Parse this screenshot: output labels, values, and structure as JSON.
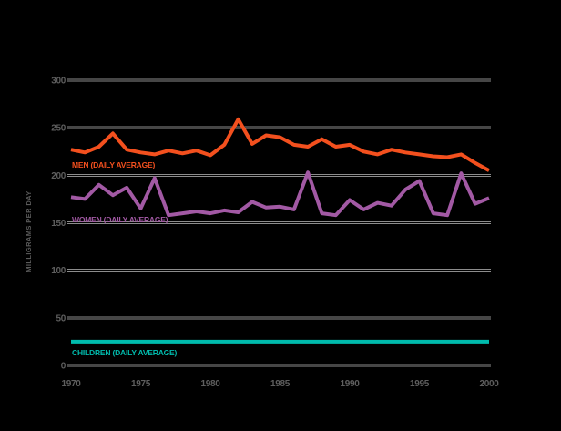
{
  "chart_data": {
    "type": "line",
    "title": "",
    "xlabel": "",
    "ylabel": "MILLIGRAMS PER DAY",
    "xlim": [
      1970,
      2000
    ],
    "ylim": [
      0,
      300
    ],
    "grid": true,
    "legend_position": "inline-on-lines",
    "x_tick_labels": [
      "1970",
      "1975",
      "1980",
      "1985",
      "1990",
      "1995",
      "2000"
    ],
    "y_ticks": [
      0,
      50,
      100,
      150,
      200,
      250,
      300
    ],
    "x": [
      1970,
      1971,
      1972,
      1973,
      1974,
      1975,
      1976,
      1977,
      1978,
      1979,
      1980,
      1981,
      1982,
      1983,
      1984,
      1985,
      1986,
      1987,
      1988,
      1989,
      1990,
      1991,
      1992,
      1993,
      1994,
      1995,
      1996,
      1997,
      1998,
      1999,
      2000
    ],
    "series": [
      {
        "name": "MEN (DAILY AVERAGE)",
        "color": "#f3501e",
        "values": [
          227,
          224,
          230,
          244,
          227,
          224,
          222,
          226,
          223,
          226,
          221,
          232,
          259,
          233,
          242,
          240,
          232,
          230,
          238,
          230,
          232,
          225,
          222,
          227,
          224,
          222,
          220,
          219,
          222,
          213,
          205
        ]
      },
      {
        "name": "WOMEN (DAILY AVERAGE)",
        "color": "#a259a4",
        "values": [
          177,
          175,
          190,
          179,
          187,
          165,
          197,
          158,
          160,
          162,
          160,
          163,
          161,
          172,
          166,
          167,
          164,
          203,
          160,
          158,
          174,
          164,
          171,
          168,
          185,
          194,
          160,
          158,
          202,
          170,
          176
        ]
      },
      {
        "name": "CHILDREN (DAILY AVERAGE)",
        "color": "#00bbad",
        "values": [
          25,
          25,
          25,
          25,
          25,
          25,
          25,
          25,
          25,
          25,
          25,
          25,
          25,
          25,
          25,
          25,
          25,
          25,
          25,
          25,
          25,
          25,
          25,
          25,
          25,
          25,
          25,
          25,
          25,
          25,
          25
        ]
      }
    ],
    "colors": {
      "background": "#000000",
      "gridline": "#8c8c8c",
      "tick_text": "#5e5e5e"
    }
  }
}
